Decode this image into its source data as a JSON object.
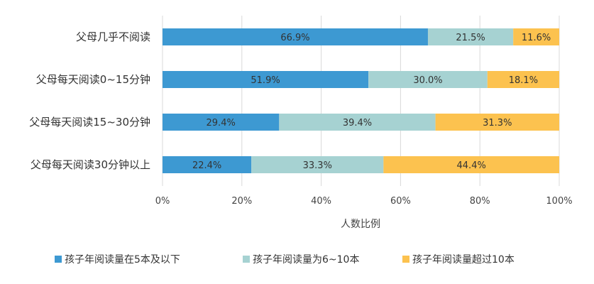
{
  "chart_data": {
    "type": "bar",
    "orientation": "horizontal",
    "stacked": true,
    "title": "",
    "xlabel": "人数比例",
    "ylabel": "",
    "xlim": [
      0,
      100
    ],
    "x_ticks": [
      "0%",
      "20%",
      "40%",
      "60%",
      "80%",
      "100%"
    ],
    "grid": true,
    "legend_position": "bottom",
    "categories": [
      "父母几乎不阅读",
      "父母每天阅读0~15分钟",
      "父母每天阅读15~30分钟",
      "父母每天阅读30分钟以上"
    ],
    "series": [
      {
        "name": "孩子年阅读量在5本及以下",
        "color": "#3d99d2",
        "values": [
          66.9,
          51.9,
          29.4,
          22.4
        ],
        "labels": [
          "66.9%",
          "51.9%",
          "29.4%",
          "22.4%"
        ]
      },
      {
        "name": "孩子年阅读量为6~10本",
        "color": "#a6d2d2",
        "values": [
          21.5,
          30.0,
          39.4,
          33.3
        ],
        "labels": [
          "21.5%",
          "30.0%",
          "39.4%",
          "33.3%"
        ]
      },
      {
        "name": "孩子年阅读量超过10本",
        "color": "#fcc24f",
        "values": [
          11.6,
          18.1,
          31.3,
          44.4
        ],
        "labels": [
          "11.6%",
          "18.1%",
          "31.3%",
          "44.4%"
        ]
      }
    ]
  }
}
